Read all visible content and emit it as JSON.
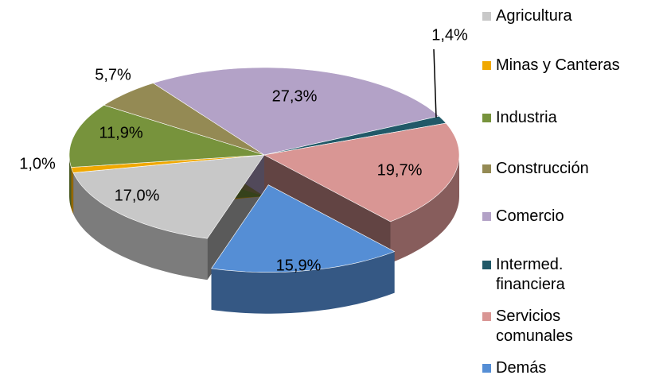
{
  "chart_data": {
    "type": "pie",
    "categories": [
      "Agricultura",
      "Minas y Canteras",
      "Industria",
      "Construcción",
      "Comercio",
      "Intermed. financiera",
      "Servicios comunales",
      "Demás"
    ],
    "values": [
      17,
      1,
      11.9,
      5.7,
      27.3,
      1.4,
      19.7,
      15.9
    ],
    "value_labels": [
      "17,0%",
      "1,0%",
      "11,9%",
      "5,7%",
      "27,3%",
      "1,4%",
      "19,7%",
      "15,9%"
    ],
    "colors": [
      "#c8c8c8",
      "#f0a800",
      "#77933c",
      "#948a54",
      "#b3a2c7",
      "#215968",
      "#d99694",
      "#558ed5"
    ],
    "legend": "right"
  }
}
